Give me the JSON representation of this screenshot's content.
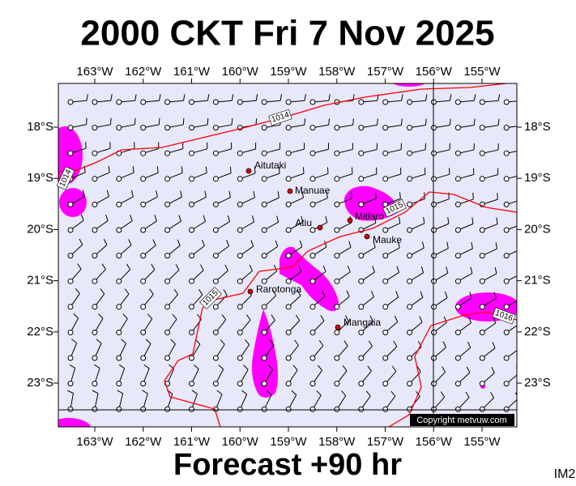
{
  "header": {
    "title": "2000 CKT Fri 7 Nov 2025"
  },
  "axes": {
    "longitudes": [
      "163°W",
      "162°W",
      "161°W",
      "160°W",
      "159°W",
      "158°W",
      "157°W",
      "156°W",
      "155°W"
    ],
    "latitudes": [
      "18°S",
      "19°S",
      "20°S",
      "21°S",
      "22°S",
      "23°S"
    ]
  },
  "places": [
    "Aitutaki",
    "Manuae",
    "Atiu",
    "Mitiaro",
    "Mauke",
    "Rarotonga",
    "Mangaia"
  ],
  "isobar_labels": [
    "1014",
    "1014",
    "1015",
    "1015",
    "1016"
  ],
  "copyright": "Copyright metvuw.com",
  "footer": {
    "forecast": "Forecast +90 hr",
    "image_id": "IM2"
  }
}
